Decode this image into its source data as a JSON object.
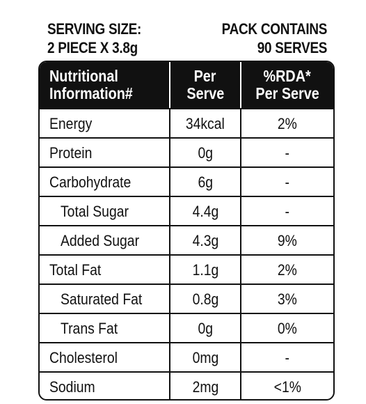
{
  "header": {
    "serving_label": "SERVING SIZE:",
    "serving_value": "2 PIECE X 3.8g",
    "pack_label": "PACK CONTAINS",
    "pack_value": "90 SERVES"
  },
  "table": {
    "columns": {
      "nutrient_line1": "Nutritional",
      "nutrient_line2": "Information#",
      "per_serve_line1": "Per",
      "per_serve_line2": "Serve",
      "rda_line1": "%RDA*",
      "rda_line2": "Per Serve"
    },
    "rows": [
      {
        "nutrient": "Energy",
        "per_serve": "34kcal",
        "rda": "2%"
      },
      {
        "nutrient": "Protein",
        "per_serve": "0g",
        "rda": "-"
      },
      {
        "nutrient": "Carbohydrate",
        "per_serve": "6g",
        "rda": "-"
      },
      {
        "nutrient": "Total Sugar",
        "per_serve": "4.4g",
        "rda": "-"
      },
      {
        "nutrient": "Added Sugar",
        "per_serve": "4.3g",
        "rda": "9%"
      },
      {
        "nutrient": "Total Fat",
        "per_serve": "1.1g",
        "rda": "2%"
      },
      {
        "nutrient": "Saturated Fat",
        "per_serve": "0.8g",
        "rda": "3%"
      },
      {
        "nutrient": "Trans Fat",
        "per_serve": "0g",
        "rda": "0%"
      },
      {
        "nutrient": "Cholesterol",
        "per_serve": "0mg",
        "rda": "-"
      },
      {
        "nutrient": "Sodium",
        "per_serve": "2mg",
        "rda": "<1%"
      }
    ]
  }
}
